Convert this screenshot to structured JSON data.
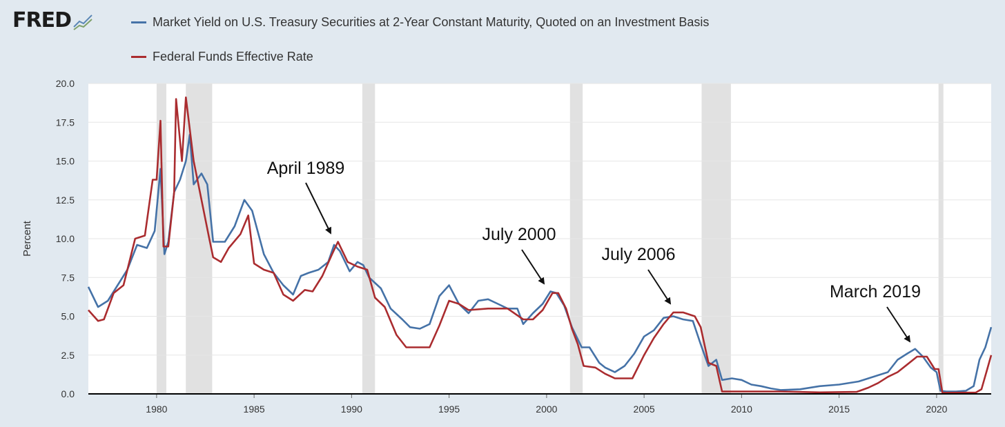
{
  "brand": {
    "name": "FRED",
    "icon": "fred-chart-icon"
  },
  "colors": {
    "frame": "#e1e9f0",
    "series_blue": "#4572a7",
    "series_red": "#aa2c2f",
    "recession": "#e1e1e1"
  },
  "chart_data": {
    "type": "line",
    "title": "",
    "xlabel": "",
    "ylabel": "Percent",
    "xlim": [
      1976.5,
      2022.8
    ],
    "ylim": [
      0,
      20
    ],
    "grid": true,
    "yticks": [
      0,
      2.5,
      5,
      7.5,
      10,
      12.5,
      15,
      17.5,
      20
    ],
    "ytick_labels": [
      "0.0",
      "2.5",
      "5.0",
      "7.5",
      "10.0",
      "12.5",
      "15.0",
      "17.5",
      "20.0"
    ],
    "xticks": [
      1980,
      1985,
      1990,
      1995,
      2000,
      2005,
      2010,
      2015,
      2020
    ],
    "xtick_labels": [
      "1980",
      "1985",
      "1990",
      "1995",
      "2000",
      "2005",
      "2010",
      "2015",
      "2020"
    ],
    "recessions": [
      [
        1980.0,
        1980.5
      ],
      [
        1981.5,
        1982.85
      ],
      [
        1990.55,
        1991.2
      ],
      [
        2001.2,
        2001.85
      ],
      [
        2007.95,
        2009.45
      ],
      [
        2020.1,
        2020.35
      ]
    ],
    "series": [
      {
        "name": "Market Yield on U.S. Treasury Securities at 2-Year Constant Maturity, Quoted on an Investment Basis",
        "color": "#4572a7",
        "x": [
          1976.5,
          1977.0,
          1977.5,
          1978.0,
          1978.5,
          1979.0,
          1979.5,
          1979.9,
          1980.2,
          1980.4,
          1980.6,
          1980.9,
          1981.2,
          1981.5,
          1981.7,
          1981.9,
          1982.3,
          1982.6,
          1982.9,
          1983.5,
          1984.0,
          1984.5,
          1984.9,
          1985.5,
          1986.0,
          1986.5,
          1987.0,
          1987.4,
          1987.8,
          1988.3,
          1988.8,
          1989.1,
          1989.4,
          1989.9,
          1990.3,
          1990.6,
          1990.9,
          1991.5,
          1992.0,
          1992.6,
          1993.0,
          1993.5,
          1994.0,
          1994.5,
          1995.0,
          1995.5,
          1996.0,
          1996.5,
          1997.0,
          1997.5,
          1998.0,
          1998.5,
          1998.8,
          1999.3,
          1999.8,
          2000.2,
          2000.5,
          2000.9,
          2001.3,
          2001.8,
          2002.2,
          2002.7,
          2003.0,
          2003.5,
          2004.0,
          2004.5,
          2005.0,
          2005.5,
          2006.0,
          2006.5,
          2007.0,
          2007.5,
          2007.9,
          2008.3,
          2008.7,
          2009.0,
          2009.5,
          2010.0,
          2010.5,
          2011.0,
          2011.5,
          2012.0,
          2013.0,
          2014.0,
          2015.0,
          2016.0,
          2017.0,
          2017.5,
          2018.0,
          2018.5,
          2018.9,
          2019.3,
          2019.7,
          2020.0,
          2020.2,
          2020.5,
          2021.0,
          2021.5,
          2021.9,
          2022.2,
          2022.5,
          2022.8
        ],
        "y": [
          6.9,
          5.6,
          6.0,
          7.0,
          8.0,
          9.6,
          9.4,
          10.5,
          14.5,
          9.0,
          9.8,
          13.0,
          13.8,
          15.0,
          16.7,
          13.5,
          14.2,
          13.5,
          9.8,
          9.8,
          10.8,
          12.5,
          11.8,
          9.0,
          7.8,
          7.0,
          6.4,
          7.6,
          7.8,
          8.0,
          8.5,
          9.6,
          9.2,
          7.9,
          8.5,
          8.3,
          7.5,
          6.8,
          5.5,
          4.8,
          4.3,
          4.2,
          4.5,
          6.3,
          7.0,
          5.8,
          5.2,
          6.0,
          6.1,
          5.8,
          5.5,
          5.5,
          4.5,
          5.2,
          5.8,
          6.6,
          6.5,
          5.7,
          4.3,
          3.0,
          3.0,
          2.0,
          1.7,
          1.4,
          1.8,
          2.6,
          3.7,
          4.1,
          4.9,
          5.0,
          4.8,
          4.7,
          3.2,
          1.8,
          2.2,
          0.9,
          1.0,
          0.9,
          0.6,
          0.5,
          0.35,
          0.25,
          0.3,
          0.5,
          0.6,
          0.8,
          1.2,
          1.4,
          2.2,
          2.6,
          2.9,
          2.4,
          1.7,
          1.4,
          0.2,
          0.15,
          0.15,
          0.2,
          0.5,
          2.2,
          3.0,
          4.3
        ]
      },
      {
        "name": "Federal Funds Effective Rate",
        "color": "#aa2c2f",
        "x": [
          1976.5,
          1977.0,
          1977.3,
          1977.8,
          1978.3,
          1978.9,
          1979.4,
          1979.8,
          1980.0,
          1980.2,
          1980.35,
          1980.6,
          1980.9,
          1981.0,
          1981.3,
          1981.5,
          1981.9,
          1982.3,
          1982.7,
          1982.9,
          1983.3,
          1983.7,
          1984.3,
          1984.7,
          1985.0,
          1985.5,
          1986.0,
          1986.5,
          1987.0,
          1987.6,
          1988.0,
          1988.5,
          1989.0,
          1989.3,
          1989.8,
          1990.3,
          1990.8,
          1991.2,
          1991.7,
          1992.3,
          1992.8,
          1993.5,
          1994.0,
          1994.5,
          1995.0,
          1995.5,
          1996.0,
          1997.0,
          1998.0,
          1998.8,
          1999.3,
          1999.8,
          2000.3,
          2000.6,
          2001.0,
          2001.3,
          2001.6,
          2001.9,
          2002.5,
          2003.0,
          2003.5,
          2004.4,
          2005.0,
          2005.5,
          2006.0,
          2006.5,
          2007.0,
          2007.6,
          2007.9,
          2008.3,
          2008.7,
          2009.0,
          2010.0,
          2012.0,
          2014.0,
          2015.9,
          2016.5,
          2017.0,
          2017.5,
          2018.0,
          2018.5,
          2019.0,
          2019.5,
          2019.9,
          2020.1,
          2020.3,
          2021.0,
          2022.0,
          2022.3,
          2022.6,
          2022.8
        ],
        "y": [
          5.4,
          4.7,
          4.8,
          6.5,
          7.0,
          10.0,
          10.2,
          13.8,
          13.8,
          17.6,
          9.5,
          9.5,
          13.0,
          19.0,
          15.0,
          19.1,
          15.0,
          12.5,
          10.0,
          8.8,
          8.5,
          9.4,
          10.3,
          11.5,
          8.4,
          8.0,
          7.8,
          6.4,
          6.0,
          6.7,
          6.6,
          7.6,
          9.0,
          9.8,
          8.5,
          8.2,
          8.0,
          6.2,
          5.6,
          3.8,
          3.0,
          3.0,
          3.0,
          4.4,
          6.0,
          5.8,
          5.4,
          5.5,
          5.5,
          4.8,
          4.8,
          5.4,
          6.5,
          6.5,
          5.5,
          4.2,
          3.2,
          1.8,
          1.7,
          1.3,
          1.0,
          1.0,
          2.5,
          3.6,
          4.5,
          5.25,
          5.25,
          5.0,
          4.3,
          2.0,
          1.8,
          0.15,
          0.15,
          0.15,
          0.1,
          0.13,
          0.4,
          0.7,
          1.1,
          1.4,
          1.9,
          2.4,
          2.4,
          1.6,
          1.6,
          0.07,
          0.08,
          0.08,
          0.3,
          1.6,
          2.5
        ]
      }
    ],
    "annotations": [
      {
        "text": "April 1989",
        "x": 1989.3,
        "y": 9.8
      },
      {
        "text": "July 2000",
        "x": 2000.5,
        "y": 6.6
      },
      {
        "text": "July 2006",
        "x": 2006.5,
        "y": 5.25
      },
      {
        "text": "March 2019",
        "x": 2019.2,
        "y": 2.4
      }
    ]
  }
}
